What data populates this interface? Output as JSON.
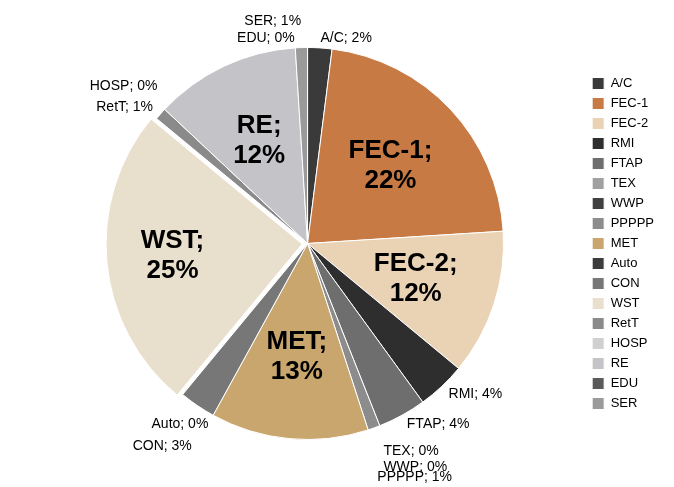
{
  "chart_data": {
    "type": "pie",
    "categories": [
      "A/C",
      "FEC-1",
      "FEC-2",
      "RMI",
      "FTAP",
      "TEX",
      "WWP",
      "PPPPP",
      "MET",
      "Auto",
      "CON",
      "WST",
      "RetT",
      "HOSP",
      "RE",
      "EDU",
      "SER"
    ],
    "values": [
      2,
      22,
      12,
      4,
      4,
      0,
      0,
      1,
      13,
      0,
      3,
      25,
      1,
      0,
      12,
      0,
      1
    ],
    "value_labels": [
      "A/C; 2%",
      "FEC-1; 22%",
      "FEC-2; 12%",
      "RMI; 4%",
      "FTAP; 4%",
      "TEX; 0%",
      "WWP; 0%",
      "PPPPP; 1%",
      "MET; 13%",
      "Auto; 0%",
      "CON; 3%",
      "WST; 25%",
      "RetT; 1%",
      "HOSP; 0%",
      "RE; 12%",
      "EDU; 0%",
      "SER; 1%"
    ],
    "colors": [
      "#3a3a3a",
      "#c87a45",
      "#ead3b4",
      "#2e2e2e",
      "#6e6e6e",
      "#a0a0a0",
      "#404040",
      "#8c8c8c",
      "#c8a66e",
      "#3c3c3c",
      "#777777",
      "#e8dfcc",
      "#8a8a8a",
      "#d0d0d0",
      "#c4c4c8",
      "#5a5a5a",
      "#9a9a9a"
    ],
    "legend": "right",
    "data_labels": true
  }
}
